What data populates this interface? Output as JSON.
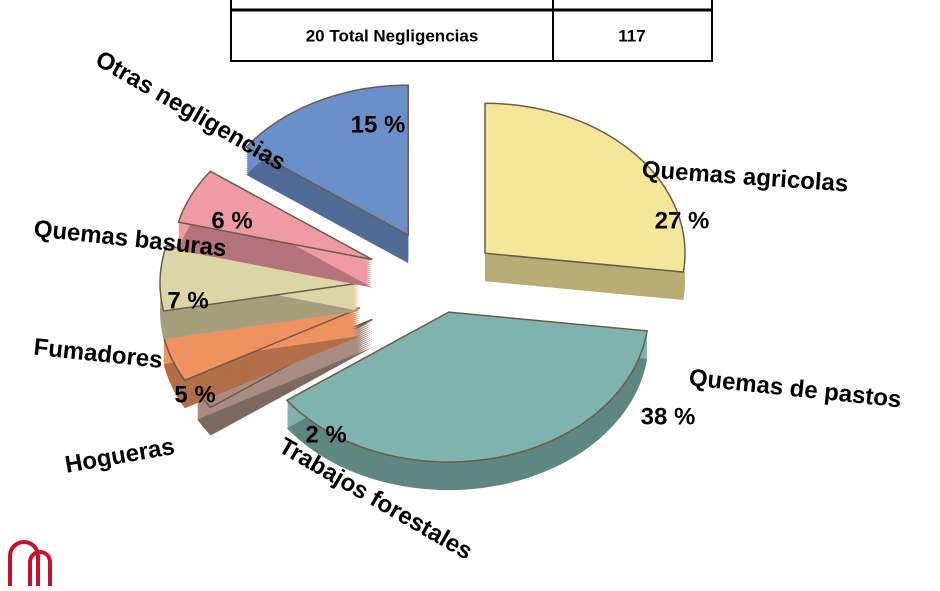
{
  "table": {
    "rows": [
      [
        "20 Total Negligencias",
        "117"
      ]
    ]
  },
  "chart_data": {
    "type": "pie",
    "categories": [
      "Quemas agricolas",
      "Quemas de pastos",
      "Trabajos forestales",
      "Hogueras",
      "Fumadores",
      "Quemas basuras",
      "Otras negligencias"
    ],
    "values": [
      27,
      38,
      2,
      5,
      7,
      6,
      15
    ],
    "value_labels": [
      "27 %",
      "38 %",
      "2 %",
      "5 %",
      "7 %",
      "6 %",
      "15 %"
    ],
    "colors": [
      "#f4e79c",
      "#7fb4ae",
      "#a88c82",
      "#ef9260",
      "#dcd5a6",
      "#f09aa3",
      "#6b8fc9"
    ]
  }
}
